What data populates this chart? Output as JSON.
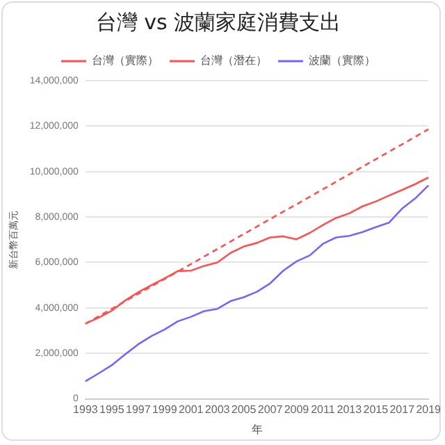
{
  "chart_data": {
    "type": "line",
    "title": "台灣 vs 波蘭家庭消費支出",
    "xlabel": "年",
    "ylabel": "新台幣百萬元",
    "categories": [
      "1993",
      null,
      "1995",
      null,
      "1997",
      null,
      "1999",
      null,
      "2001",
      null,
      "2003",
      null,
      "2005",
      null,
      "2007",
      null,
      "2009",
      null,
      "2011",
      null,
      "2013",
      null,
      "2015",
      null,
      "2017",
      null,
      "2019"
    ],
    "series": [
      {
        "name": "台灣（實際）",
        "color": "#ff5050",
        "line_style": "solid",
        "values": [
          3310000,
          3570000,
          3880000,
          4320000,
          4690000,
          5000000,
          5300000,
          5620000,
          5640000,
          5850000,
          6000000,
          6420000,
          6700000,
          6860000,
          7100000,
          7150000,
          7020000,
          7300000,
          7650000,
          7960000,
          8160000,
          8470000,
          8680000,
          8940000,
          9190000,
          9450000,
          9740000
        ]
      },
      {
        "name": "台灣（潛在）",
        "color": "#ff5050",
        "line_style": "dashed",
        "values": [
          3300000,
          3630000,
          3960000,
          4290000,
          4620000,
          4950000,
          5270000,
          5600000,
          5930000,
          6260000,
          6590000,
          6920000,
          7250000,
          7580000,
          7910000,
          8240000,
          8560000,
          8890000,
          9220000,
          9550000,
          9880000,
          10210000,
          10540000,
          10870000,
          11200000,
          11530000,
          11860000
        ]
      },
      {
        "name": "波蘭（實際）",
        "color": "#7b61ff",
        "line_style": "solid",
        "values": [
          770000,
          1120000,
          1480000,
          1950000,
          2400000,
          2760000,
          3050000,
          3410000,
          3610000,
          3860000,
          3960000,
          4300000,
          4470000,
          4710000,
          5080000,
          5640000,
          6050000,
          6310000,
          6820000,
          7100000,
          7170000,
          7340000,
          7550000,
          7750000,
          8370000,
          8820000,
          9390000
        ]
      }
    ],
    "ylim": [
      0,
      14000000
    ],
    "yticks": [
      0,
      {
        "value": 2000000,
        "label": "2,000,000"
      },
      {
        "value": 4000000,
        "label": "4,000,000"
      },
      {
        "value": 6000000,
        "label": "6,000,000"
      },
      {
        "value": 8000000,
        "label": "8,000,000"
      },
      {
        "value": 10000000,
        "label": "10,000,000"
      },
      {
        "value": 12000000,
        "label": "12,000,000"
      },
      {
        "value": 14000000,
        "label": "14,000,000"
      }
    ],
    "grid": "y",
    "legend": "top",
    "marker": "none"
  }
}
